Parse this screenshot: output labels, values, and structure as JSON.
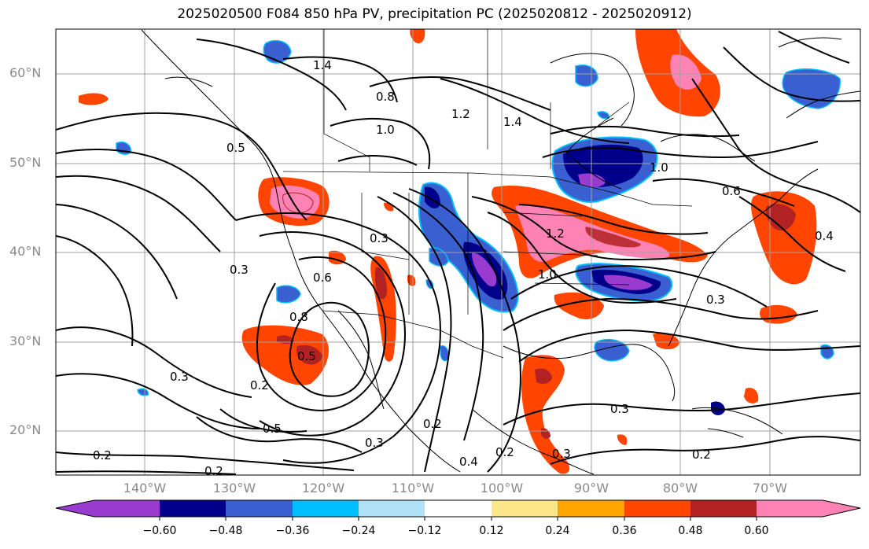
{
  "title": "2025020500 F084 850 hPa PV, precipitation PC (2025020812 - 2025020912)",
  "lat_labels": [
    "60°N",
    "50°N",
    "40°N",
    "30°N",
    "20°N"
  ],
  "lon_labels": [
    "140°W",
    "130°W",
    "120°W",
    "110°W",
    "100°W",
    "90°W",
    "80°W",
    "70°W"
  ],
  "contour_labels": [
    "1.4",
    "0.8",
    "1.2",
    "1.4",
    "1.0",
    "0.5",
    "1.0",
    "0.6",
    "0.3",
    "1.2",
    "0.3",
    "0.6",
    "0.8",
    "0.5",
    "0.3",
    "0.2",
    "0.5",
    "0.3",
    "0.2",
    "0.4",
    "0.2",
    "0.3",
    "0.3",
    "0.2",
    "0.2",
    "0.2",
    "0.4",
    "0.3",
    "1.0"
  ],
  "colorbar": {
    "ticks": [
      "−0.60",
      "−0.48",
      "−0.36",
      "−0.24",
      "−0.12",
      "0.12",
      "0.24",
      "0.36",
      "0.48",
      "0.60"
    ],
    "colors": [
      "#9a3bd0",
      "#00008b",
      "#3a5fd0",
      "#00bfff",
      "#b0e0f8",
      "#ffffff",
      "#fde68a",
      "#ffa500",
      "#ff4500",
      "#b22222",
      "#ff82b4"
    ]
  }
}
